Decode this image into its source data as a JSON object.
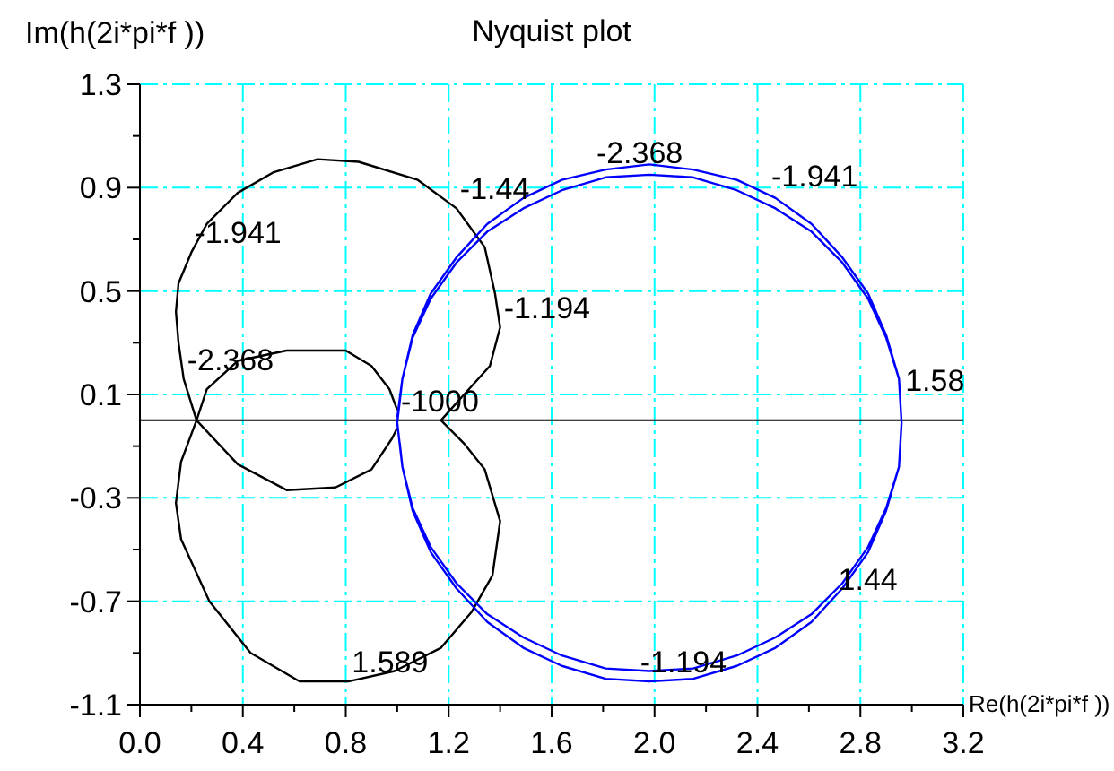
{
  "chart_data": {
    "type": "line",
    "title": "Nyquist plot",
    "xlabel": "Re(h(2i*pi*f ))",
    "ylabel": "Im(h(2i*pi*f ))",
    "xlim": [
      0,
      3.2
    ],
    "xticks": [
      {
        "value": 0,
        "label": "0.0"
      },
      {
        "value": 0.2,
        "label": null
      },
      0.4,
      {
        "value": 0.6,
        "label": null
      },
      0.8,
      {
        "value": 1,
        "label": null
      },
      1.2,
      {
        "value": 1.4,
        "label": null
      },
      1.6,
      {
        "value": 1.8,
        "label": null
      },
      {
        "value": 2,
        "label": "2.0"
      },
      {
        "value": 2.2,
        "label": null
      },
      2.4,
      {
        "value": 2.6,
        "label": null
      },
      2.8,
      {
        "value": 3,
        "label": null
      },
      3.2
    ],
    "ylim": [
      -1.1,
      1.3
    ],
    "yticks": [
      -1.1,
      {
        "value": -0.9,
        "label": null
      },
      -0.7,
      {
        "value": -0.5,
        "label": null
      },
      -0.3,
      {
        "value": -0.1,
        "label": null
      },
      0.1,
      {
        "value": 0.3,
        "label": null
      },
      0.5,
      {
        "value": 0.7,
        "label": null
      },
      0.9,
      {
        "value": 1.1,
        "label": null
      },
      1.3
    ],
    "grid": true,
    "series": [
      {
        "color": "#000000",
        "x": [
          1.0,
          0.98,
          0.9,
          0.76,
          0.57,
          0.38,
          0.22,
          0.17,
          0.15,
          0.14,
          0.15,
          0.2,
          0.26,
          0.38,
          0.52,
          0.69,
          0.85,
          1.08,
          1.23,
          1.34,
          1.38,
          1.4,
          1.36,
          1.26,
          1.17,
          1.26,
          1.34,
          1.4,
          1.37,
          1.29,
          1.17,
          0.99,
          0.81,
          0.62,
          0.43,
          0.27,
          0.16,
          0.14,
          0.16,
          0.22,
          0.26,
          0.38,
          0.57,
          0.8,
          0.9,
          0.97,
          1.0
        ],
        "values": [
          -0.03,
          -0.07,
          -0.19,
          -0.26,
          -0.27,
          -0.17,
          0.0,
          0.16,
          0.3,
          0.42,
          0.53,
          0.65,
          0.76,
          0.88,
          0.96,
          1.01,
          1.0,
          0.93,
          0.82,
          0.67,
          0.49,
          0.36,
          0.21,
          0.1,
          0.0,
          -0.09,
          -0.19,
          -0.39,
          -0.6,
          -0.74,
          -0.88,
          -0.97,
          -1.01,
          -1.01,
          -0.9,
          -0.7,
          -0.46,
          -0.32,
          -0.16,
          0.0,
          0.12,
          0.23,
          0.27,
          0.27,
          0.21,
          0.12,
          0.04
        ]
      },
      {
        "color": "#0000ff",
        "x": [
          1.0,
          1.02,
          1.06,
          1.13,
          1.23,
          1.35,
          1.49,
          1.64,
          1.81,
          1.98,
          2.15,
          2.32,
          2.47,
          2.61,
          2.73,
          2.83,
          2.9,
          2.95,
          2.96,
          2.95,
          2.9,
          2.83,
          2.73,
          2.61,
          2.47,
          2.32,
          2.15,
          1.98,
          1.81,
          1.64,
          1.49,
          1.35,
          1.23,
          1.13,
          1.06,
          1.02,
          1.0,
          1.02,
          1.06,
          1.13,
          1.23,
          1.35,
          1.49,
          1.64,
          1.81,
          1.98,
          2.15,
          2.32,
          2.47,
          2.61,
          2.73,
          2.83,
          2.9,
          2.95,
          2.96,
          2.95,
          2.9,
          2.83,
          2.73,
          2.61,
          2.47,
          2.32,
          2.15,
          1.98,
          1.81,
          1.64,
          1.49,
          1.35,
          1.23,
          1.13,
          1.06,
          1.02,
          1.01
        ],
        "values": [
          0.01,
          0.16,
          0.33,
          0.49,
          0.63,
          0.76,
          0.86,
          0.93,
          0.97,
          0.99,
          0.97,
          0.93,
          0.86,
          0.76,
          0.63,
          0.49,
          0.33,
          0.16,
          -0.01,
          -0.18,
          -0.35,
          -0.51,
          -0.65,
          -0.78,
          -0.88,
          -0.95,
          -1.0,
          -1.01,
          -1.0,
          -0.95,
          -0.88,
          -0.78,
          -0.65,
          -0.51,
          -0.35,
          -0.18,
          -0.01,
          0.16,
          0.32,
          0.47,
          0.61,
          0.73,
          0.82,
          0.89,
          0.94,
          0.95,
          0.94,
          0.89,
          0.82,
          0.73,
          0.61,
          0.47,
          0.32,
          0.16,
          -0.01,
          -0.18,
          -0.34,
          -0.49,
          -0.63,
          -0.75,
          -0.84,
          -0.91,
          -0.96,
          -0.97,
          -0.96,
          -0.91,
          -0.84,
          -0.75,
          -0.63,
          -0.49,
          -0.34,
          -0.18,
          -0.09
        ]
      }
    ],
    "ref_lines": [
      {
        "axis": "y",
        "value": 0,
        "color": "#000000"
      }
    ],
    "annotations": [
      {
        "text": "-1.44",
        "x": 1.23,
        "y": 0.82
      },
      {
        "text": "-1.941",
        "x": 0.2,
        "y": 0.65
      },
      {
        "text": "-1.194",
        "x": 1.4,
        "y": 0.36
      },
      {
        "text": "-2.368",
        "x": 0.17,
        "y": 0.16
      },
      {
        "text": "-1000",
        "x": 1.0,
        "y": 0.0
      },
      {
        "text": "1.589",
        "x": 0.81,
        "y": -1.01
      },
      {
        "text": "-2.368",
        "x": 1.76,
        "y": 0.96
      },
      {
        "text": "-1.941",
        "x": 2.44,
        "y": 0.87
      },
      {
        "text": "1.58",
        "x": 2.96,
        "y": 0.08
      },
      {
        "text": "1.44",
        "x": 2.7,
        "y": -0.69
      },
      {
        "text": "-1.194",
        "x": 1.93,
        "y": -1.01
      }
    ]
  }
}
